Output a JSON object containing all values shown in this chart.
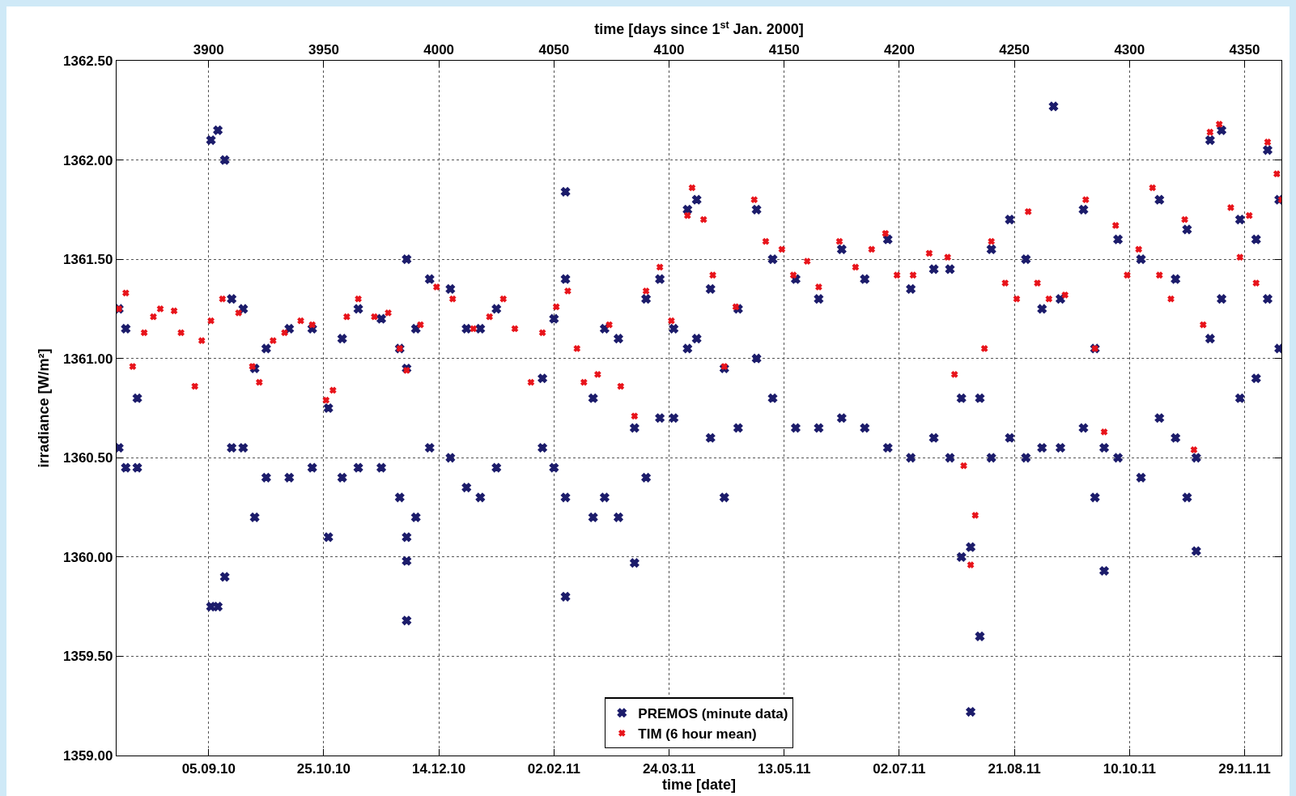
{
  "chart_data": {
    "type": "scatter",
    "xlabel": "time [date]",
    "x2label": "time [days since 1$^{st}$ Jan. 2000]",
    "ylabel": "irradiance [W/m²]",
    "xlim": [
      "2010-07-27",
      "2011-12-15"
    ],
    "x2lim": [
      3860,
      4366
    ],
    "xticks": [
      {
        "value": "2010-09-05",
        "label": "05.09.10"
      },
      {
        "value": "2010-10-25",
        "label": "25.10.10"
      },
      {
        "value": "2010-12-14",
        "label": "14.12.10"
      },
      {
        "value": "2011-02-02",
        "label": "02.02.11"
      },
      {
        "value": "2011-03-24",
        "label": "24.03.11"
      },
      {
        "value": "2011-05-13",
        "label": "13.05.11"
      },
      {
        "value": "2011-07-02",
        "label": "02.07.11"
      },
      {
        "value": "2011-08-21",
        "label": "21.08.11"
      },
      {
        "value": "2011-10-10",
        "label": "10.10.11"
      },
      {
        "value": "2011-11-29",
        "label": "29.11.11"
      }
    ],
    "x2ticks": [
      3900,
      3950,
      4000,
      4050,
      4100,
      4150,
      4200,
      4250,
      4300,
      4350
    ],
    "ylim": [
      1359,
      1362.5
    ],
    "yticks": [
      {
        "value": 1359,
        "label": "1359.00"
      },
      {
        "value": 1359.5,
        "label": "1359.50"
      },
      {
        "value": 1360,
        "label": "1360.00"
      },
      {
        "value": 1360.5,
        "label": "1360.50"
      },
      {
        "value": 1361,
        "label": "1361.00"
      },
      {
        "value": 1361.5,
        "label": "1361.50"
      },
      {
        "value": 1362,
        "label": "1362.00"
      },
      {
        "value": 1362.5,
        "label": "1362.50"
      }
    ],
    "grid": true,
    "legend": "bottom",
    "marker": "cross",
    "series": [
      {
        "name": "PREMOS (minute data)",
        "color": "#1c1c6b",
        "axis": "x2",
        "x": [
          3861,
          3861,
          3864,
          3864,
          3869,
          3869,
          3901,
          3901,
          3904,
          3904,
          3907,
          3907,
          3910,
          3910,
          3915,
          3915,
          3920,
          3920,
          3925,
          3925,
          3935,
          3935,
          3945,
          3945,
          3952,
          3952,
          3958,
          3958,
          3965,
          3965,
          3975,
          3975,
          3983,
          3983,
          3986,
          3986,
          3986,
          3986,
          3986,
          3990,
          3990,
          3996,
          3996,
          4005,
          4005,
          4012,
          4012,
          4018,
          4018,
          4025,
          4025,
          4045,
          4045,
          4050,
          4050,
          4055,
          4055,
          4055,
          4055,
          4067,
          4067,
          4072,
          4072,
          4078,
          4078,
          4085,
          4085,
          4090,
          4090,
          4096,
          4096,
          4102,
          4102,
          4108,
          4108,
          4112,
          4112,
          4118,
          4118,
          4124,
          4124,
          4130,
          4130,
          4138,
          4138,
          4145,
          4145,
          4155,
          4155,
          4165,
          4165,
          4175,
          4175,
          4185,
          4185,
          4195,
          4195,
          4205,
          4205,
          4215,
          4215,
          4222,
          4222,
          4227,
          4227,
          4231,
          4231,
          4235,
          4235,
          4240,
          4240,
          4248,
          4248,
          4255,
          4255,
          4262,
          4262,
          4267,
          4270,
          4270,
          4280,
          4280,
          4285,
          4285,
          4289,
          4289,
          4295,
          4295,
          4305,
          4305,
          4313,
          4313,
          4320,
          4320,
          4325,
          4325,
          4329,
          4329,
          4335,
          4335,
          4340,
          4340,
          4348,
          4348,
          4355,
          4355,
          4360,
          4360,
          4365,
          4365
        ],
        "values": [
          1360.55,
          1361.25,
          1360.45,
          1361.15,
          1360.45,
          1360.8,
          1359.75,
          1362.1,
          1359.75,
          1362.15,
          1359.9,
          1362,
          1360.55,
          1361.3,
          1360.55,
          1361.25,
          1360.2,
          1360.95,
          1360.4,
          1361.05,
          1360.4,
          1361.15,
          1360.45,
          1361.15,
          1360.1,
          1360.75,
          1360.4,
          1361.1,
          1360.45,
          1361.25,
          1360.45,
          1361.2,
          1360.3,
          1361.05,
          1360.1,
          1360.95,
          1359.98,
          1359.68,
          1361.5,
          1360.2,
          1361.15,
          1360.55,
          1361.4,
          1360.5,
          1361.35,
          1360.35,
          1361.15,
          1360.3,
          1361.15,
          1360.45,
          1361.25,
          1360.55,
          1360.9,
          1360.45,
          1361.2,
          1360.3,
          1361.4,
          1361.84,
          1359.8,
          1360.2,
          1360.8,
          1360.3,
          1361.15,
          1360.2,
          1361.1,
          1359.97,
          1360.65,
          1360.4,
          1361.3,
          1360.7,
          1361.4,
          1360.7,
          1361.15,
          1361.05,
          1361.75,
          1361.1,
          1361.8,
          1360.6,
          1361.35,
          1360.3,
          1360.95,
          1360.65,
          1361.25,
          1361,
          1361.75,
          1360.8,
          1361.5,
          1360.65,
          1361.4,
          1360.65,
          1361.3,
          1360.7,
          1361.55,
          1360.65,
          1361.4,
          1360.55,
          1361.6,
          1360.5,
          1361.35,
          1360.6,
          1361.45,
          1360.5,
          1361.45,
          1360,
          1360.8,
          1359.22,
          1360.05,
          1359.6,
          1360.8,
          1360.5,
          1361.55,
          1360.6,
          1361.7,
          1360.5,
          1361.5,
          1360.55,
          1361.25,
          1362.27,
          1360.55,
          1361.3,
          1360.65,
          1361.75,
          1360.3,
          1361.05,
          1359.93,
          1360.55,
          1360.5,
          1361.6,
          1360.4,
          1361.5,
          1360.7,
          1361.8,
          1360.6,
          1361.4,
          1360.3,
          1361.65,
          1360.03,
          1360.5,
          1361.1,
          1362.1,
          1361.3,
          1362.15,
          1360.8,
          1361.7,
          1360.9,
          1361.6,
          1361.3,
          1362.05,
          1361.05,
          1361.8
        ]
      },
      {
        "name": "TIM (6 hour mean)",
        "color": "#e8141b",
        "axis": "x2",
        "x": [
          3861,
          3864,
          3867,
          3872,
          3876,
          3879,
          3885,
          3888,
          3894,
          3897,
          3901,
          3906,
          3913,
          3919,
          3922,
          3928,
          3933,
          3940,
          3945,
          3951,
          3954,
          3960,
          3965,
          3972,
          3978,
          3983,
          3986,
          3992,
          3999,
          4006,
          4015,
          4022,
          4028,
          4033,
          4040,
          4045,
          4051,
          4056,
          4060,
          4063,
          4069,
          4074,
          4079,
          4085,
          4090,
          4096,
          4101,
          4108,
          4110,
          4115,
          4119,
          4124,
          4129,
          4137,
          4142,
          4149,
          4154,
          4160,
          4165,
          4174,
          4181,
          4188,
          4194,
          4199,
          4206,
          4213,
          4221,
          4224,
          4228,
          4231,
          4233,
          4237,
          4240,
          4246,
          4251,
          4256,
          4260,
          4265,
          4272,
          4281,
          4285,
          4289,
          4294,
          4299,
          4304,
          4310,
          4313,
          4318,
          4324,
          4328,
          4332,
          4335,
          4339,
          4344,
          4348,
          4352,
          4355,
          4360,
          4364,
          4366
        ],
        "values": [
          1361.25,
          1361.33,
          1360.96,
          1361.13,
          1361.21,
          1361.25,
          1361.24,
          1361.13,
          1360.86,
          1361.09,
          1361.19,
          1361.3,
          1361.23,
          1360.96,
          1360.88,
          1361.09,
          1361.13,
          1361.19,
          1361.17,
          1360.79,
          1360.84,
          1361.21,
          1361.3,
          1361.21,
          1361.23,
          1361.05,
          1360.94,
          1361.17,
          1361.36,
          1361.3,
          1361.15,
          1361.21,
          1361.3,
          1361.15,
          1360.88,
          1361.13,
          1361.26,
          1361.34,
          1361.05,
          1360.88,
          1360.92,
          1361.17,
          1360.86,
          1360.71,
          1361.34,
          1361.46,
          1361.19,
          1361.72,
          1361.86,
          1361.7,
          1361.42,
          1360.96,
          1361.26,
          1361.8,
          1361.59,
          1361.55,
          1361.42,
          1361.49,
          1361.36,
          1361.59,
          1361.46,
          1361.55,
          1361.63,
          1361.42,
          1361.42,
          1361.53,
          1361.51,
          1360.92,
          1360.46,
          1359.96,
          1360.21,
          1361.05,
          1361.59,
          1361.38,
          1361.3,
          1361.74,
          1361.38,
          1361.3,
          1361.32,
          1361.8,
          1361.05,
          1360.63,
          1361.67,
          1361.42,
          1361.55,
          1361.86,
          1361.42,
          1361.3,
          1361.7,
          1360.54,
          1361.17,
          1362.14,
          1362.18,
          1361.76,
          1361.51,
          1361.72,
          1361.38,
          1362.09,
          1361.93,
          1361.8
        ]
      }
    ]
  }
}
